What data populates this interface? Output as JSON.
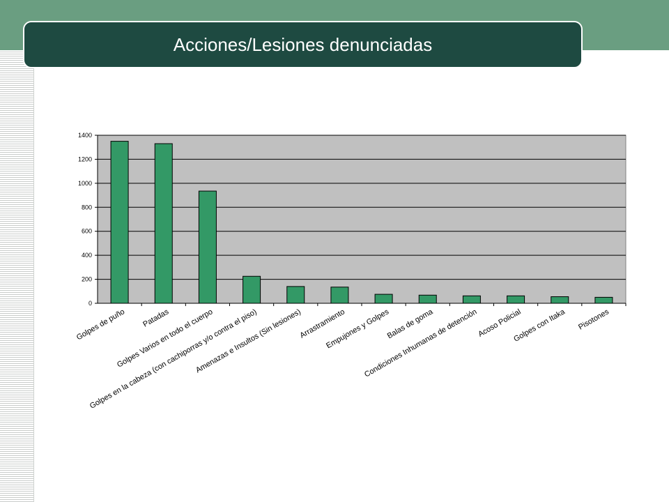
{
  "slide": {
    "title": "Acciones/Lesiones denunciadas"
  },
  "colors": {
    "top_band": "#6a9e81",
    "title_bar": "#1e4a41",
    "plot_background": "#c0c0c0",
    "bar_fill": "#339966"
  },
  "chart_data": {
    "type": "bar",
    "categories": [
      "Golpes de puño",
      "Patadas",
      "Golpes Varios en todo el cuerpo",
      "Golpes en la cabeza (con cachiporras y/o contra el piso)",
      "Amenazas e Insultos (Sin lesiones)",
      "Arrastramiento",
      "Empujones y Golpes",
      "Balas de goma",
      "Condiciones Inhumanas de detención",
      "Acoso Policial",
      "Golpes con Itaka",
      "Pisotones"
    ],
    "values": [
      1350,
      1330,
      935,
      225,
      140,
      135,
      75,
      68,
      62,
      62,
      55,
      50
    ],
    "yticks": [
      "0",
      "200",
      "400",
      "600",
      "800",
      "1000",
      "1200",
      "1400"
    ],
    "ylim": [
      0,
      1400
    ],
    "grid": true,
    "legend": "none",
    "title": "",
    "xlabel": "",
    "ylabel": ""
  }
}
